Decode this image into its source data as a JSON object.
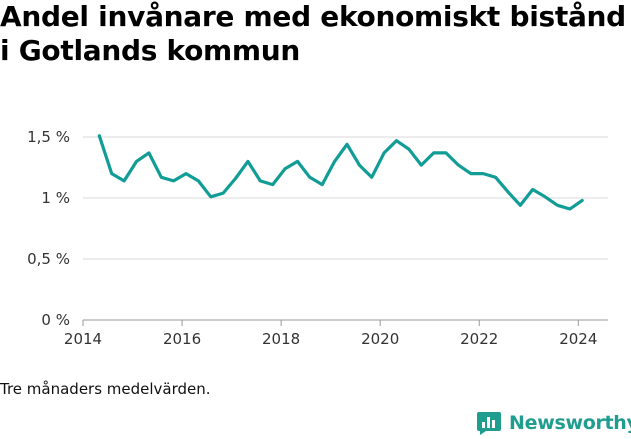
{
  "title": "Andel invånare med ekonomiskt bistånd i Gotlands kommun",
  "caption": "Tre månaders medelvärden.",
  "brand": {
    "name": "Newsworthy",
    "icon": "newsworthy-logo-icon",
    "color": "#1f9d8f"
  },
  "chart_data": {
    "type": "line",
    "title": "Andel invånare med ekonomiskt bistånd i Gotlands kommun",
    "xlabel": "",
    "ylabel": "",
    "ylim": [
      0,
      1.5
    ],
    "xlim": [
      2014,
      2024.6
    ],
    "yticks": [
      0,
      0.5,
      1,
      1.5
    ],
    "ytick_labels": [
      "0 %",
      "0,5 %",
      "1 %",
      "1,5 %"
    ],
    "xticks": [
      2014,
      2016,
      2018,
      2020,
      2022,
      2024
    ],
    "xtick_labels": [
      "2014",
      "2016",
      "2018",
      "2020",
      "2022",
      "2024"
    ],
    "grid": true,
    "line_color": "#119c96",
    "series": [
      {
        "name": "",
        "x": [
          2014.33,
          2014.58,
          2014.83,
          2015.08,
          2015.33,
          2015.58,
          2015.83,
          2016.08,
          2016.33,
          2016.58,
          2016.83,
          2017.08,
          2017.33,
          2017.58,
          2017.83,
          2018.08,
          2018.33,
          2018.58,
          2018.83,
          2019.08,
          2019.33,
          2019.58,
          2019.83,
          2020.08,
          2020.33,
          2020.58,
          2020.83,
          2021.08,
          2021.33,
          2021.58,
          2021.83,
          2022.08,
          2022.33,
          2022.58,
          2022.83,
          2023.08,
          2023.33,
          2023.58,
          2023.83,
          2024.08
        ],
        "values": [
          1.51,
          1.2,
          1.14,
          1.3,
          1.37,
          1.17,
          1.14,
          1.2,
          1.14,
          1.01,
          1.04,
          1.16,
          1.3,
          1.14,
          1.11,
          1.24,
          1.3,
          1.17,
          1.11,
          1.3,
          1.44,
          1.27,
          1.17,
          1.37,
          1.47,
          1.4,
          1.27,
          1.37,
          1.37,
          1.27,
          1.2,
          1.2,
          1.17,
          1.05,
          0.94,
          1.07,
          1.01,
          0.94,
          0.91,
          0.98
        ]
      }
    ]
  }
}
